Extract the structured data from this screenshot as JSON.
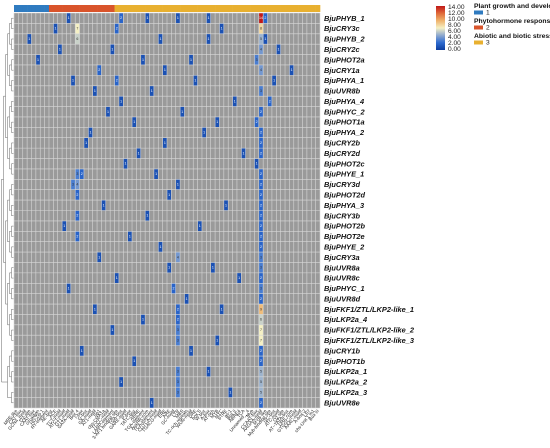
{
  "chart_data": {
    "type": "heatmap",
    "title": "",
    "rows": [
      "BjuPHYB_1",
      "BjuCRY3c",
      "BjuPHYB_2",
      "BjuCRY2c",
      "BjuPHOT2a",
      "BjuCRY1a",
      "BjuPHYA_1",
      "BjuUVR8b",
      "BjuPHYA_4",
      "BjuPHYC_2",
      "BjuPHOT1a",
      "BjuPHYA_2",
      "BjuCRY2b",
      "BjuCRY2d",
      "BjuPHOT2c",
      "BjuPHYE_1",
      "BjuCRY3d",
      "BjuPHOT2d",
      "BjuPHYA_3",
      "BjuCRY3b",
      "BjuPHOT2b",
      "BjuPHOT2e",
      "BjuPHYE_2",
      "BjuCRY3a",
      "BjuUVR8a",
      "BjuUVR8c",
      "BjuPHYC_1",
      "BjuUVR8d",
      "BjuFKF1/ZTL/LKP2-like_1",
      "BjuLKP2a_4",
      "BjuFKF1/ZTL/LKP2-like_2",
      "BjuFKF1/ZTL/LKP2-like_3",
      "BjuCRY1b",
      "BjuPHOT1b",
      "BjuLKP2a_1",
      "BjuLKP2a_2",
      "BjuLKP2a_3",
      "BjuUVR8e"
    ],
    "columns": [
      "MRE-like",
      "CAT-box",
      "GCN4_motif",
      "O2-site",
      "CAAT-box",
      "circadian",
      "HD-Zip 1",
      "RY-element",
      "AE-box",
      "ACE",
      "TCT-motif",
      "ATCT-motif",
      "GT1-motif",
      "GATA-motif",
      "Box 4",
      "I-box",
      "G-box",
      "GA-motif",
      "AT1-motif",
      "Sp1",
      "chs-CMA1a",
      "TCCC-motif",
      "LAMP-element",
      "3-AF1 binding site",
      "TGA-box",
      "GARE-motif",
      "P-box",
      "TATC-box",
      "ABRE",
      "TGA-element",
      "AuxRR-core",
      "TCA-element",
      "CGTCA-motif",
      "TGACG-motif",
      "ERE",
      "ARE",
      "GC-motif",
      "LTR",
      "MBS",
      "TC-rich repeats",
      "WUN-motif",
      "DRE",
      "box S",
      "W box",
      "A-box",
      "AT-rich",
      "MYB",
      "MYC",
      "STRE",
      "as-1",
      "Box II",
      "ABRE4",
      "TCA",
      "Unnamed__4",
      "Myb",
      "CCAAT-box",
      "AAGAA-motif",
      "MYB-like",
      "Myb-binding site",
      "GC-box",
      "ATC-motif",
      "O2 site",
      "AT~TATA-box",
      "DRE core",
      "GTGGC-motif",
      "AAAC-motif",
      "A-box-2",
      "LS7",
      "chs-Unit 1 m1",
      "Box III"
    ],
    "column_labels_shown": [
      "MRE-like",
      "CAT-box",
      "GCN4_motif",
      "O2-site",
      "CAAT-box",
      "circadian",
      "HD-Zip 1",
      "RY-element",
      "AE-box",
      "ACE",
      "TCT-motif",
      "ATCT-motif",
      "GT1-motif",
      "GATA-motif",
      "Box 4",
      "I-box",
      "G-box",
      "GA-motif",
      "AT1-motif",
      "Sp1",
      "chs-CMA1a",
      "TCCC-motif",
      "LAMP-element",
      "3-AF1 binding site",
      "TGA-box",
      "GARE-motif",
      "P-box",
      "TATC-box",
      "ABRE",
      "TGA-element",
      "AuxRR-core",
      "TCA-element",
      "CGTCA-motif",
      "TGACG-motif",
      "ERE",
      "ARE",
      "GC-motif",
      "LTR",
      "MBS",
      "TC-rich repeats",
      "WUN-motif",
      "DRE",
      "box S",
      "W box",
      "A-box",
      "AT-rich",
      "MYB",
      "MYC",
      "STRE",
      "as-1",
      "Box II",
      "ABRE4",
      "TCA",
      "Unnamed__4",
      "Myb",
      "CCAAT-box",
      "AAGAA-motif",
      "MYB-like",
      "Myb-binding site",
      "GC-box",
      "ATC-motif",
      "O2 site",
      "AT~TATA-box",
      "DRE core",
      "GTGGC-motif",
      "AAAC-motif",
      "A-box-2",
      "LS7",
      "chs-Unit 1 m1",
      "Box III"
    ],
    "column_groups": [
      1,
      1,
      1,
      1,
      1,
      1,
      1,
      1,
      2,
      2,
      2,
      2,
      2,
      2,
      2,
      2,
      2,
      2,
      2,
      2,
      2,
      2,
      2,
      3,
      3,
      3,
      3,
      3,
      3,
      3,
      3,
      3,
      3,
      3,
      3,
      3,
      3,
      3,
      3,
      3,
      3,
      3,
      3,
      3,
      3,
      3,
      3,
      3,
      3,
      3,
      3,
      3,
      3,
      3,
      3,
      3,
      3,
      3,
      3,
      3,
      3,
      3,
      3,
      3,
      3,
      3,
      3,
      3,
      3,
      3
    ],
    "cells": [
      [
        0,
        56,
        14
      ],
      [
        0,
        12,
        1
      ],
      [
        0,
        24,
        2
      ],
      [
        0,
        30,
        1
      ],
      [
        0,
        37,
        1
      ],
      [
        0,
        44,
        1
      ],
      [
        0,
        57,
        2
      ],
      [
        1,
        14,
        7
      ],
      [
        1,
        56,
        8
      ],
      [
        1,
        23,
        2
      ],
      [
        1,
        9,
        1
      ],
      [
        1,
        47,
        1
      ],
      [
        2,
        14,
        6
      ],
      [
        2,
        56,
        5
      ],
      [
        2,
        3,
        1
      ],
      [
        2,
        33,
        1
      ],
      [
        2,
        44,
        1
      ],
      [
        2,
        57,
        1
      ],
      [
        3,
        56,
        4
      ],
      [
        3,
        10,
        1
      ],
      [
        3,
        22,
        1
      ],
      [
        3,
        60,
        1
      ],
      [
        4,
        55,
        3
      ],
      [
        4,
        5,
        1
      ],
      [
        4,
        29,
        1
      ],
      [
        4,
        40,
        1
      ],
      [
        5,
        56,
        4
      ],
      [
        5,
        19,
        2
      ],
      [
        5,
        34,
        1
      ],
      [
        5,
        63,
        1
      ],
      [
        6,
        23,
        2
      ],
      [
        6,
        13,
        1
      ],
      [
        6,
        41,
        1
      ],
      [
        6,
        59,
        1
      ],
      [
        7,
        56,
        3
      ],
      [
        7,
        18,
        1
      ],
      [
        7,
        31,
        1
      ],
      [
        8,
        58,
        2
      ],
      [
        8,
        24,
        1
      ],
      [
        8,
        50,
        1
      ],
      [
        9,
        56,
        2
      ],
      [
        9,
        21,
        1
      ],
      [
        9,
        38,
        1
      ],
      [
        10,
        55,
        2
      ],
      [
        10,
        27,
        1
      ],
      [
        10,
        46,
        1
      ],
      [
        11,
        56,
        2
      ],
      [
        11,
        17,
        1
      ],
      [
        11,
        43,
        1
      ],
      [
        12,
        56,
        2
      ],
      [
        12,
        16,
        1
      ],
      [
        12,
        34,
        1
      ],
      [
        13,
        56,
        2
      ],
      [
        13,
        28,
        1
      ],
      [
        13,
        52,
        1
      ],
      [
        14,
        55,
        1
      ],
      [
        14,
        25,
        1
      ],
      [
        15,
        14,
        3
      ],
      [
        15,
        15,
        2
      ],
      [
        15,
        56,
        2
      ],
      [
        15,
        32,
        1
      ],
      [
        16,
        13,
        3
      ],
      [
        16,
        14,
        4
      ],
      [
        16,
        56,
        2
      ],
      [
        16,
        37,
        1
      ],
      [
        17,
        14,
        2
      ],
      [
        17,
        56,
        2
      ],
      [
        17,
        35,
        1
      ],
      [
        18,
        56,
        2
      ],
      [
        18,
        20,
        1
      ],
      [
        18,
        48,
        1
      ],
      [
        19,
        14,
        2
      ],
      [
        19,
        56,
        2
      ],
      [
        19,
        30,
        1
      ],
      [
        20,
        56,
        2
      ],
      [
        20,
        11,
        1
      ],
      [
        20,
        42,
        1
      ],
      [
        21,
        14,
        2
      ],
      [
        21,
        56,
        2
      ],
      [
        21,
        26,
        1
      ],
      [
        22,
        56,
        2
      ],
      [
        22,
        33,
        1
      ],
      [
        23,
        37,
        4
      ],
      [
        23,
        56,
        3
      ],
      [
        23,
        19,
        1
      ],
      [
        24,
        56,
        3
      ],
      [
        24,
        35,
        1
      ],
      [
        24,
        45,
        1
      ],
      [
        25,
        56,
        2
      ],
      [
        25,
        23,
        1
      ],
      [
        25,
        51,
        1
      ],
      [
        26,
        56,
        3
      ],
      [
        26,
        36,
        2
      ],
      [
        26,
        12,
        1
      ],
      [
        27,
        56,
        2
      ],
      [
        27,
        39,
        1
      ],
      [
        28,
        56,
        9
      ],
      [
        28,
        37,
        2
      ],
      [
        28,
        18,
        1
      ],
      [
        28,
        47,
        1
      ],
      [
        29,
        56,
        6
      ],
      [
        29,
        37,
        2
      ],
      [
        29,
        29,
        1
      ],
      [
        30,
        56,
        7
      ],
      [
        30,
        37,
        3
      ],
      [
        30,
        22,
        1
      ],
      [
        31,
        56,
        7
      ],
      [
        31,
        37,
        3
      ],
      [
        31,
        46,
        1
      ],
      [
        32,
        56,
        2
      ],
      [
        32,
        15,
        1
      ],
      [
        32,
        40,
        1
      ],
      [
        33,
        56,
        2
      ],
      [
        33,
        27,
        1
      ],
      [
        34,
        56,
        5
      ],
      [
        34,
        37,
        3
      ],
      [
        34,
        44,
        1
      ],
      [
        35,
        56,
        5
      ],
      [
        35,
        37,
        3
      ],
      [
        35,
        24,
        1
      ],
      [
        36,
        56,
        5
      ],
      [
        36,
        37,
        3
      ],
      [
        36,
        49,
        1
      ],
      [
        37,
        56,
        2
      ],
      [
        37,
        31,
        1
      ]
    ],
    "color_scale": {
      "ticks": [
        "14.00",
        "12.00",
        "10.00",
        "8.00",
        "6.00",
        "4.00",
        "2.00",
        "0.00"
      ],
      "min": 0,
      "max": 14,
      "colors": [
        "#0d3d9e",
        "#2e6bd0",
        "#8ea9cf",
        "#f5f0c4",
        "#efb36c",
        "#e06a3a",
        "#c01818"
      ]
    },
    "null_color": "#9a9a9a",
    "legend": [
      {
        "name": "Plant growth and development",
        "code": "1",
        "color": "#2f7bc0"
      },
      {
        "name": "Phytohormone responsive",
        "code": "2",
        "color": "#d9542b"
      },
      {
        "name": "Abiotic and biotic stress",
        "code": "3",
        "color": "#e8b030"
      }
    ]
  }
}
